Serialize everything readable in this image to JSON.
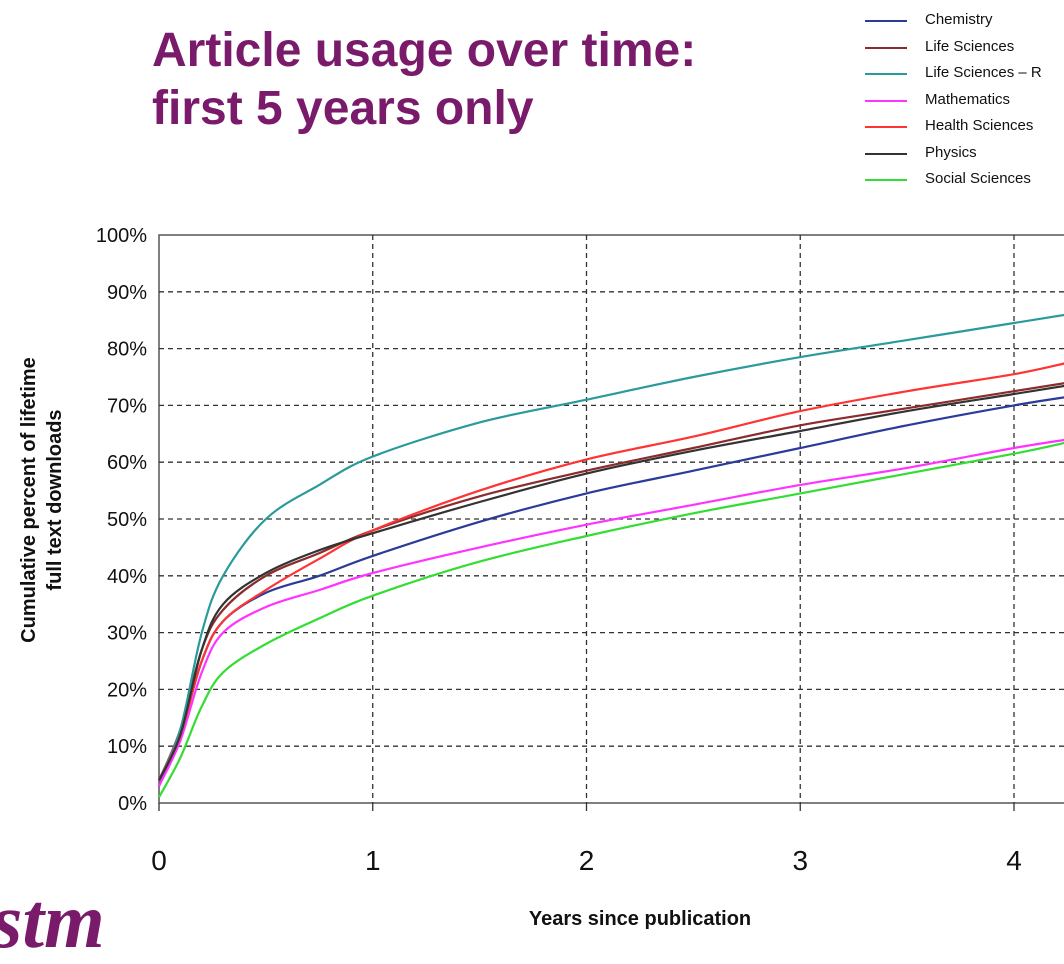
{
  "title_lines": [
    "Article usage over time:",
    "first 5 years only"
  ],
  "logo_text": "stm",
  "chart_data": {
    "type": "line",
    "title": "Article usage over time: first 5 years only",
    "xlabel": "Years since publication",
    "ylabel": [
      "Cumulative percent of lifetime",
      "full text downloads"
    ],
    "xlim": [
      0,
      4.25
    ],
    "ylim": [
      0,
      100
    ],
    "x_ticks": [
      0,
      1,
      2,
      3,
      4
    ],
    "x_tick_labels": [
      "0",
      "1",
      "2",
      "3",
      "4"
    ],
    "y_ticks": [
      0,
      10,
      20,
      30,
      40,
      50,
      60,
      70,
      80,
      90,
      100
    ],
    "y_tick_labels": [
      "0%",
      "10%",
      "20%",
      "30%",
      "40%",
      "50%",
      "60%",
      "70%",
      "80%",
      "90%",
      "100%"
    ],
    "grid": "dashed",
    "legend_position": "top-right",
    "series": [
      {
        "name": "Chemistry",
        "color": "#2b3b9a",
        "points": [
          [
            0,
            3
          ],
          [
            0.1,
            12
          ],
          [
            0.2,
            25
          ],
          [
            0.3,
            32
          ],
          [
            0.5,
            37
          ],
          [
            0.75,
            40
          ],
          [
            1,
            43.5
          ],
          [
            1.5,
            49.5
          ],
          [
            2,
            54.5
          ],
          [
            2.5,
            58.5
          ],
          [
            3,
            62.5
          ],
          [
            3.5,
            66.5
          ],
          [
            4,
            70
          ],
          [
            4.25,
            71.5
          ]
        ]
      },
      {
        "name": "Life Sciences",
        "color": "#8c2b2b",
        "points": [
          [
            0,
            4
          ],
          [
            0.1,
            13
          ],
          [
            0.2,
            27
          ],
          [
            0.3,
            34
          ],
          [
            0.5,
            40
          ],
          [
            0.75,
            44
          ],
          [
            1,
            48
          ],
          [
            1.5,
            54
          ],
          [
            2,
            58.5
          ],
          [
            2.5,
            62.5
          ],
          [
            3,
            66.5
          ],
          [
            3.5,
            69.5
          ],
          [
            4,
            72.5
          ],
          [
            4.25,
            74
          ]
        ]
      },
      {
        "name": "Life Sciences – R",
        "color": "#2a9a9a",
        "points": [
          [
            0,
            4
          ],
          [
            0.1,
            13
          ],
          [
            0.2,
            30
          ],
          [
            0.3,
            40
          ],
          [
            0.5,
            50
          ],
          [
            0.75,
            56
          ],
          [
            1,
            61
          ],
          [
            1.5,
            67
          ],
          [
            2,
            71
          ],
          [
            2.5,
            75
          ],
          [
            3,
            78.5
          ],
          [
            3.5,
            81.5
          ],
          [
            4,
            84.5
          ],
          [
            4.25,
            86
          ]
        ]
      },
      {
        "name": "Mathematics",
        "color": "#ff33ff",
        "points": [
          [
            0,
            3
          ],
          [
            0.1,
            11
          ],
          [
            0.2,
            23
          ],
          [
            0.3,
            30
          ],
          [
            0.5,
            34.5
          ],
          [
            0.75,
            37.5
          ],
          [
            1,
            40.5
          ],
          [
            1.5,
            45
          ],
          [
            2,
            49
          ],
          [
            2.5,
            52.5
          ],
          [
            3,
            56
          ],
          [
            3.5,
            59
          ],
          [
            4,
            62.5
          ],
          [
            4.25,
            64
          ]
        ]
      },
      {
        "name": "Health Sciences",
        "color": "#ff3333",
        "points": [
          [
            0,
            4
          ],
          [
            0.1,
            12
          ],
          [
            0.2,
            25
          ],
          [
            0.3,
            32
          ],
          [
            0.5,
            37.5
          ],
          [
            0.75,
            43
          ],
          [
            1,
            48
          ],
          [
            1.5,
            55
          ],
          [
            2,
            60.5
          ],
          [
            2.5,
            64.5
          ],
          [
            3,
            69
          ],
          [
            3.5,
            72.5
          ],
          [
            4,
            75.5
          ],
          [
            4.25,
            77.5
          ]
        ]
      },
      {
        "name": "Physics",
        "color": "#333333",
        "points": [
          [
            0,
            4
          ],
          [
            0.1,
            12
          ],
          [
            0.2,
            27
          ],
          [
            0.3,
            35
          ],
          [
            0.5,
            40.5
          ],
          [
            0.75,
            44.5
          ],
          [
            1,
            47.5
          ],
          [
            1.5,
            53
          ],
          [
            2,
            58
          ],
          [
            2.5,
            62
          ],
          [
            3,
            65.5
          ],
          [
            3.5,
            69
          ],
          [
            4,
            72
          ],
          [
            4.25,
            73.5
          ]
        ]
      },
      {
        "name": "Social Sciences",
        "color": "#33dd33",
        "points": [
          [
            0,
            1
          ],
          [
            0.1,
            8
          ],
          [
            0.2,
            17
          ],
          [
            0.3,
            23
          ],
          [
            0.5,
            28
          ],
          [
            0.75,
            32.5
          ],
          [
            1,
            36.5
          ],
          [
            1.5,
            42.5
          ],
          [
            2,
            47
          ],
          [
            2.5,
            51
          ],
          [
            3,
            54.5
          ],
          [
            3.5,
            58
          ],
          [
            4,
            61.5
          ],
          [
            4.25,
            63.5
          ]
        ]
      }
    ]
  }
}
